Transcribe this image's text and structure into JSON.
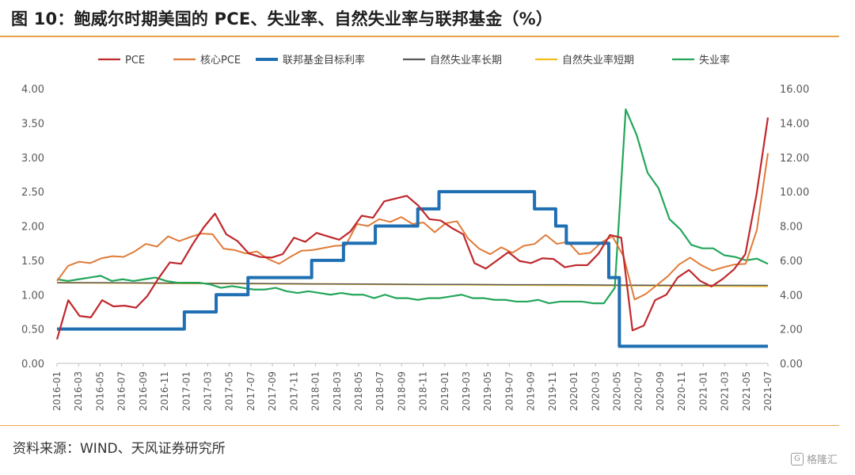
{
  "title": "图 10：鲍威尔时期美国的 PCE、失业率、自然失业率与联邦基金（%）",
  "source": "资料来源：WIND、天风证券研究所",
  "watermark": {
    "text": "格隆汇",
    "icon": "glh-logo-icon"
  },
  "chart_data": {
    "type": "line",
    "title": "图 10：鲍威尔时期美国的 PCE、失业率、自然失业率与联邦基金（%）",
    "xlabel": "",
    "ylabel": "",
    "x_start": "2016-01",
    "x_tick_labels": [
      "2016-01",
      "2016-03",
      "2016-05",
      "2016-07",
      "2016-09",
      "2016-11",
      "2017-01",
      "2017-03",
      "2017-05",
      "2017-07",
      "2017-09",
      "2017-11",
      "2018-01",
      "2018-03",
      "2018-05",
      "2018-07",
      "2018-09",
      "2018-11",
      "2019-01",
      "2019-03",
      "2019-05",
      "2019-07",
      "2019-09",
      "2019-11",
      "2020-01",
      "2020-03",
      "2020-05",
      "2020-07",
      "2020-09",
      "2020-11",
      "2021-01",
      "2021-03",
      "2021-05",
      "2021-07"
    ],
    "y_left": {
      "min": 0,
      "max": 4,
      "ticks": [
        "0.00",
        "0.50",
        "1.00",
        "1.50",
        "2.00",
        "2.50",
        "3.00",
        "3.50",
        "4.00"
      ]
    },
    "y_right": {
      "min": 0,
      "max": 16,
      "ticks": [
        "0.00",
        "2.00",
        "4.00",
        "6.00",
        "8.00",
        "10.00",
        "12.00",
        "14.00",
        "16.00"
      ]
    },
    "grid": false,
    "legend_position": "top",
    "series": [
      {
        "name": "PCE",
        "axis": "left",
        "color": "#c0282d",
        "width": 2.2,
        "values": [
          0.35,
          0.92,
          0.69,
          0.67,
          0.92,
          0.83,
          0.84,
          0.81,
          0.98,
          1.24,
          1.47,
          1.45,
          1.73,
          1.98,
          2.18,
          1.88,
          1.78,
          1.6,
          1.55,
          1.54,
          1.59,
          1.83,
          1.77,
          1.9,
          1.85,
          1.8,
          1.92,
          2.15,
          2.12,
          2.36,
          2.4,
          2.44,
          2.3,
          2.1,
          2.08,
          1.97,
          1.88,
          1.46,
          1.38,
          1.5,
          1.62,
          1.49,
          1.46,
          1.53,
          1.52,
          1.4,
          1.43,
          1.43,
          1.6,
          1.87,
          1.83,
          0.48,
          0.55,
          0.92,
          1.0,
          1.25,
          1.36,
          1.2,
          1.12,
          1.23,
          1.37,
          1.59,
          2.47,
          3.58
        ]
      },
      {
        "name": "核心PCE",
        "axis": "left",
        "color": "#e07b39",
        "width": 2.0,
        "values": [
          1.2,
          1.42,
          1.48,
          1.46,
          1.53,
          1.56,
          1.55,
          1.63,
          1.74,
          1.7,
          1.85,
          1.78,
          1.84,
          1.89,
          1.88,
          1.67,
          1.65,
          1.6,
          1.63,
          1.52,
          1.45,
          1.55,
          1.64,
          1.65,
          1.68,
          1.71,
          1.72,
          2.03,
          2.0,
          2.1,
          2.06,
          2.13,
          2.03,
          2.05,
          1.91,
          2.04,
          2.07,
          1.82,
          1.67,
          1.59,
          1.69,
          1.61,
          1.71,
          1.74,
          1.87,
          1.74,
          1.77,
          1.59,
          1.61,
          1.76,
          1.85,
          1.56,
          0.93,
          1.01,
          1.14,
          1.27,
          1.44,
          1.54,
          1.43,
          1.35,
          1.4,
          1.44,
          1.45,
          1.94,
          3.06
        ]
      },
      {
        "name": "联邦基金目标利率",
        "axis": "right",
        "color": "#1f6fb2",
        "width": 4.0,
        "step": true,
        "values": [
          2,
          2,
          2,
          2,
          2,
          2,
          2,
          2,
          2,
          2,
          2,
          2,
          3,
          3,
          3,
          4,
          4,
          4,
          5,
          5,
          5,
          5,
          5,
          5,
          6,
          6,
          6,
          7,
          7,
          7,
          8,
          8,
          8,
          8,
          9,
          9,
          10,
          10,
          10,
          10,
          10,
          10,
          10,
          10,
          10,
          9,
          9,
          8,
          7,
          7,
          7,
          7,
          5,
          1,
          1,
          1,
          1,
          1,
          1,
          1,
          1,
          1,
          1,
          1,
          1,
          1,
          1,
          1
        ]
      },
      {
        "name": "自然失业率长期",
        "axis": "right",
        "color": "#595959",
        "width": 1.5,
        "values": [
          4.7,
          4.7,
          4.68,
          4.66,
          4.65,
          4.63,
          4.62,
          4.6,
          4.6,
          4.58,
          4.58,
          4.56,
          4.55,
          4.55,
          4.54
        ]
      },
      {
        "name": "自然失业率短期",
        "axis": "right",
        "color": "#f2be1e",
        "width": 2.0,
        "values": [
          4.7,
          4.69,
          4.68,
          4.67,
          4.66,
          4.65,
          4.64,
          4.63,
          4.62,
          4.61,
          4.6,
          4.59,
          4.58,
          4.57,
          4.56,
          4.55,
          4.54,
          4.53,
          4.52,
          4.51,
          4.5,
          4.49
        ]
      },
      {
        "name": "失业率",
        "axis": "right",
        "color": "#23a65a",
        "width": 2.2,
        "values": [
          4.9,
          4.8,
          4.9,
          5.0,
          5.1,
          4.8,
          4.9,
          4.8,
          4.9,
          5.0,
          4.8,
          4.7,
          4.7,
          4.7,
          4.6,
          4.4,
          4.5,
          4.4,
          4.3,
          4.3,
          4.4,
          4.2,
          4.1,
          4.2,
          4.1,
          4.0,
          4.1,
          4.0,
          4.0,
          3.8,
          4.0,
          3.8,
          3.8,
          3.7,
          3.8,
          3.8,
          3.9,
          4.0,
          3.8,
          3.8,
          3.7,
          3.7,
          3.6,
          3.6,
          3.7,
          3.5,
          3.6,
          3.6,
          3.6,
          3.5,
          3.5,
          4.4,
          14.8,
          13.3,
          11.1,
          10.2,
          8.4,
          7.8,
          6.9,
          6.7,
          6.7,
          6.3,
          6.2,
          6.0,
          6.1,
          5.8
        ]
      }
    ]
  }
}
